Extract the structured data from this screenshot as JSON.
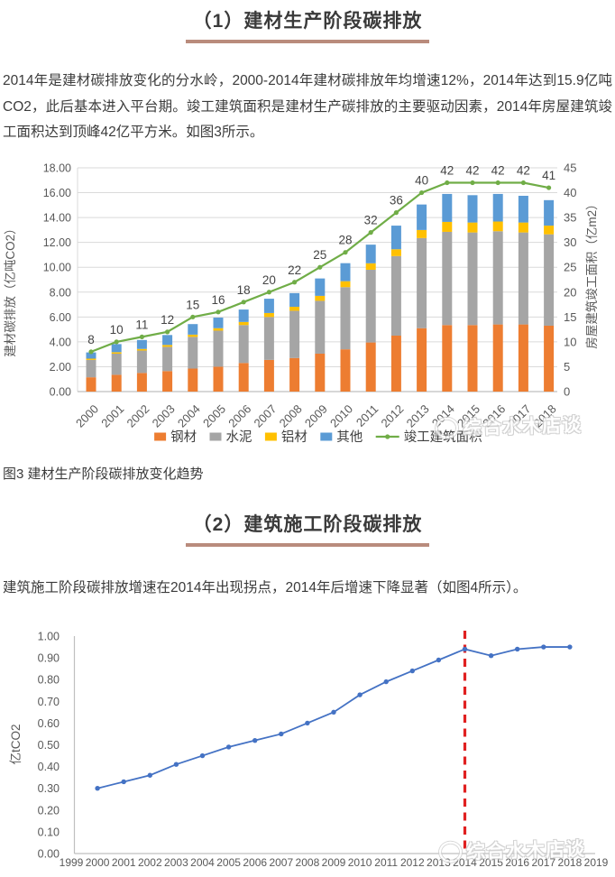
{
  "section1": {
    "title": "（1）建材生产阶段碳排放",
    "paragraph": "2014年是建材碳排放变化的分水岭，2000-2014年建材碳排放年均增速12%，2014年达到15.9亿吨CO2，此后基本进入平台期。竣工建筑面积是建材生产碳排放的主要驱动因素，2014年房屋建筑竣工面积达到顶峰42亿平方米。如图3所示。",
    "figure_caption": "图3 建材生产阶段碳排放变化趋势"
  },
  "section2": {
    "title": "（2）建筑施工阶段碳排放",
    "paragraph": "建筑施工阶段碳排放增速在2014年出现拐点，2014年后增速下降显著（如图4所示）。"
  },
  "watermark": {
    "text": "综合水木店谈"
  },
  "colors": {
    "steel": "#ED7D31",
    "cement": "#A5A5A5",
    "aluminum": "#FFC000",
    "other": "#5B9BD5",
    "area_line": "#70AD47",
    "construction_line": "#4472C4",
    "vline_red": "#E02020",
    "axis_text": "#595959",
    "grid": "#DADADA",
    "axis_line": "#BFBFBF"
  },
  "chart_data": [
    {
      "type": "bar",
      "combo": "stacked-bar-with-line",
      "categories": [
        2000,
        2001,
        2002,
        2003,
        2004,
        2005,
        2006,
        2007,
        2008,
        2009,
        2010,
        2011,
        2012,
        2013,
        2014,
        2015,
        2016,
        2017,
        2018
      ],
      "series": [
        {
          "name": "钢材",
          "color": "#ED7D31",
          "axis": "left",
          "values": [
            1.15,
            1.35,
            1.5,
            1.65,
            1.85,
            2.0,
            2.3,
            2.55,
            2.7,
            3.05,
            3.4,
            3.95,
            4.5,
            5.1,
            5.35,
            5.35,
            5.4,
            5.4,
            5.3
          ]
        },
        {
          "name": "水泥",
          "color": "#A5A5A5",
          "axis": "left",
          "values": [
            1.4,
            1.7,
            1.8,
            1.95,
            2.55,
            2.9,
            3.05,
            3.45,
            3.8,
            4.25,
            5.0,
            5.85,
            6.4,
            7.25,
            7.5,
            7.45,
            7.5,
            7.4,
            7.35
          ]
        },
        {
          "name": "铝材",
          "color": "#FFC000",
          "axis": "left",
          "values": [
            0.1,
            0.12,
            0.13,
            0.15,
            0.18,
            0.2,
            0.25,
            0.32,
            0.32,
            0.4,
            0.48,
            0.52,
            0.55,
            0.65,
            0.8,
            0.8,
            0.78,
            0.8,
            0.7
          ]
        },
        {
          "name": "其他",
          "color": "#5B9BD5",
          "axis": "left",
          "values": [
            0.5,
            0.65,
            0.72,
            0.8,
            0.85,
            0.85,
            1.0,
            1.15,
            1.1,
            1.4,
            1.45,
            1.5,
            1.9,
            2.05,
            2.25,
            2.2,
            2.22,
            2.15,
            2.05
          ]
        },
        {
          "name": "竣工建筑面积",
          "type": "line",
          "color": "#70AD47",
          "axis": "right",
          "data_labels": true,
          "values": [
            8,
            10,
            11,
            12,
            15,
            16,
            18,
            20,
            22,
            25,
            28,
            32,
            36,
            40,
            42,
            42,
            42,
            42,
            41
          ]
        }
      ],
      "left_axis": {
        "label": "建材碳排放（亿吨CO2）",
        "min": 0,
        "max": 18,
        "step": 2
      },
      "right_axis": {
        "label": "房屋建筑竣工面积（亿m2）",
        "min": 0,
        "max": 45,
        "step": 5
      },
      "legend_position": "bottom",
      "grid": true
    },
    {
      "type": "line",
      "x": [
        2000,
        2001,
        2002,
        2003,
        2004,
        2005,
        2006,
        2007,
        2008,
        2009,
        2010,
        2011,
        2012,
        2013,
        2014,
        2015,
        2016,
        2017,
        2018
      ],
      "values": [
        0.3,
        0.33,
        0.36,
        0.41,
        0.45,
        0.49,
        0.52,
        0.55,
        0.6,
        0.65,
        0.73,
        0.79,
        0.84,
        0.89,
        0.94,
        0.91,
        0.94,
        0.95,
        0.95
      ],
      "x_axis_range": [
        1999,
        2019
      ],
      "ylabel": "亿tCO2",
      "ylim": [
        0,
        1.0
      ],
      "ystep": 0.1,
      "line_color": "#4472C4",
      "annotation": {
        "type": "vline",
        "x": 2014,
        "color": "#E02020",
        "style": "dashed"
      },
      "grid": false,
      "legend_position": "none"
    }
  ]
}
